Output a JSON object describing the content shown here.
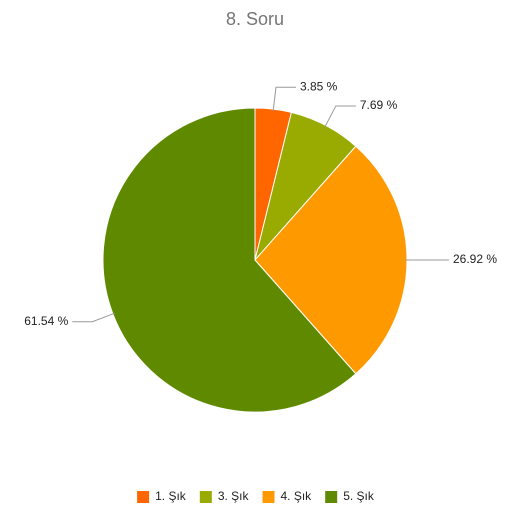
{
  "chart_data": {
    "type": "pie",
    "title": "8. Soru",
    "categories": [
      "1. Şık",
      "3. Şık",
      "4. Şık",
      "5. Şık"
    ],
    "values": [
      3.85,
      7.69,
      26.92,
      61.54
    ],
    "value_labels": [
      "3.85 %",
      "7.69 %",
      "26.92 %",
      "61.54 %"
    ],
    "colors": [
      "#ff6600",
      "#99aa00",
      "#ff9900",
      "#5f8a00"
    ],
    "legend": "bottom"
  }
}
